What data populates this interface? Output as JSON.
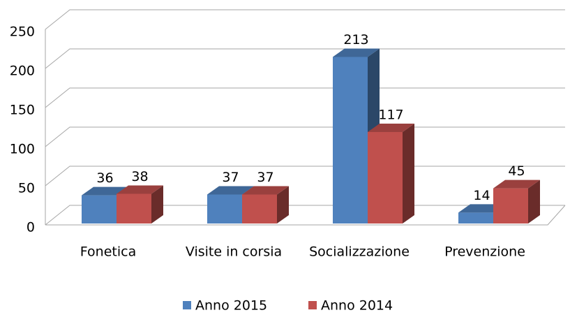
{
  "chart_data": {
    "type": "bar3d",
    "categories": [
      "Fonetica",
      "Visite in corsia",
      "Socializzazione",
      "Prevenzione"
    ],
    "series": [
      {
        "name": "Anno 2015",
        "color": "#4f81bd",
        "values": [
          36,
          37,
          213,
          14
        ]
      },
      {
        "name": "Anno 2014",
        "color": "#c0504d",
        "values": [
          38,
          37,
          117,
          45
        ]
      }
    ],
    "ylim": [
      0,
      250
    ],
    "yticks": [
      0,
      50,
      100,
      150,
      200,
      250
    ],
    "grid": true,
    "legend": "bottom"
  }
}
